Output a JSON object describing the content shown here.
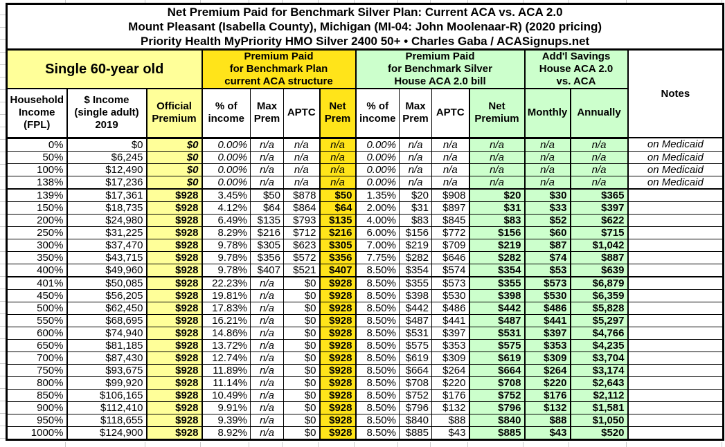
{
  "titles": {
    "line1": "Net Premium Paid for Benchmark Silver Plan: Current ACA vs. ACA 2.0",
    "line2": "Mount Pleasant (Isabella County), Michigan (MI-04: John Moolenaar-R) (2020 pricing)",
    "line3": "Priority Health MyPriority HMO Silver 2400 50+ • Charles Gaba / ACASignups.net"
  },
  "colors": {
    "pale_yellow": "#FFFF99",
    "bright_yellow": "#FFE41A",
    "pale_green": "#CCFFCC",
    "grid_grey": "#C9C9C9"
  },
  "header": {
    "single": "Single 60-year old",
    "aca_group": "Premium Paid\nfor Benchmark Plan\ncurrent ACA structure",
    "aca2_group": "Premium Paid\nfor Benchmark Silver\nHouse ACA 2.0 bill",
    "savings_group": "Add'l Savings\nHouse ACA 2.0\nvs. ACA",
    "notes": "Notes",
    "cols": {
      "fpl": "Household\nIncome\n(FPL)",
      "income": "$ Income\n(single adult)\n2019",
      "official": "Official\nPremium",
      "pct": "% of\nincome",
      "max": "Max\nPrem",
      "aptc": "APTC",
      "net1": "Net\nPrem",
      "net2": "Net\nPremium",
      "monthly": "Monthly",
      "annually": "Annually"
    }
  },
  "rows": [
    {
      "fpl": "0%",
      "income": "$0",
      "official": "$0",
      "pct1": "0.00%",
      "max1": "n/a",
      "aptc1": "n/a",
      "net1": "n/a",
      "pct2": "0.00%",
      "max2": "n/a",
      "aptc2": "n/a",
      "net2": "n/a",
      "monthly": "n/a",
      "annually": "n/a",
      "note": "on Medicaid",
      "medicaid": true
    },
    {
      "fpl": "50%",
      "income": "$6,245",
      "official": "$0",
      "pct1": "0.00%",
      "max1": "n/a",
      "aptc1": "n/a",
      "net1": "n/a",
      "pct2": "0.00%",
      "max2": "n/a",
      "aptc2": "n/a",
      "net2": "n/a",
      "monthly": "n/a",
      "annually": "n/a",
      "note": "on Medicaid",
      "medicaid": true
    },
    {
      "fpl": "100%",
      "income": "$12,490",
      "official": "$0",
      "pct1": "0.00%",
      "max1": "n/a",
      "aptc1": "n/a",
      "net1": "n/a",
      "pct2": "0.00%",
      "max2": "n/a",
      "aptc2": "n/a",
      "net2": "n/a",
      "monthly": "n/a",
      "annually": "n/a",
      "note": "on Medicaid",
      "medicaid": true
    },
    {
      "fpl": "138%",
      "income": "$17,236",
      "official": "$0",
      "pct1": "0.00%",
      "max1": "n/a",
      "aptc1": "n/a",
      "net1": "n/a",
      "pct2": "0.00%",
      "max2": "n/a",
      "aptc2": "n/a",
      "net2": "n/a",
      "monthly": "n/a",
      "annually": "n/a",
      "note": "on Medicaid",
      "medicaid": true
    },
    {
      "fpl": "139%",
      "income": "$17,361",
      "official": "$928",
      "pct1": "3.45%",
      "max1": "$50",
      "aptc1": "$878",
      "net1": "$50",
      "pct2": "1.35%",
      "max2": "$20",
      "aptc2": "$908",
      "net2": "$20",
      "monthly": "$30",
      "annually": "$365",
      "note": "",
      "thick_top": true
    },
    {
      "fpl": "150%",
      "income": "$18,735",
      "official": "$928",
      "pct1": "4.12%",
      "max1": "$64",
      "aptc1": "$864",
      "net1": "$64",
      "pct2": "2.00%",
      "max2": "$31",
      "aptc2": "$897",
      "net2": "$31",
      "monthly": "$33",
      "annually": "$397",
      "note": ""
    },
    {
      "fpl": "200%",
      "income": "$24,980",
      "official": "$928",
      "pct1": "6.49%",
      "max1": "$135",
      "aptc1": "$793",
      "net1": "$135",
      "pct2": "4.00%",
      "max2": "$83",
      "aptc2": "$845",
      "net2": "$83",
      "monthly": "$52",
      "annually": "$622",
      "note": ""
    },
    {
      "fpl": "250%",
      "income": "$31,225",
      "official": "$928",
      "pct1": "8.29%",
      "max1": "$216",
      "aptc1": "$712",
      "net1": "$216",
      "pct2": "6.00%",
      "max2": "$156",
      "aptc2": "$772",
      "net2": "$156",
      "monthly": "$60",
      "annually": "$715",
      "note": ""
    },
    {
      "fpl": "300%",
      "income": "$37,470",
      "official": "$928",
      "pct1": "9.78%",
      "max1": "$305",
      "aptc1": "$623",
      "net1": "$305",
      "pct2": "7.00%",
      "max2": "$219",
      "aptc2": "$709",
      "net2": "$219",
      "monthly": "$87",
      "annually": "$1,042",
      "note": ""
    },
    {
      "fpl": "350%",
      "income": "$43,715",
      "official": "$928",
      "pct1": "9.78%",
      "max1": "$356",
      "aptc1": "$572",
      "net1": "$356",
      "pct2": "7.75%",
      "max2": "$282",
      "aptc2": "$646",
      "net2": "$282",
      "monthly": "$74",
      "annually": "$887",
      "note": ""
    },
    {
      "fpl": "400%",
      "income": "$49,960",
      "official": "$928",
      "pct1": "9.78%",
      "max1": "$407",
      "aptc1": "$521",
      "net1": "$407",
      "pct2": "8.50%",
      "max2": "$354",
      "aptc2": "$574",
      "net2": "$354",
      "monthly": "$53",
      "annually": "$639",
      "note": ""
    },
    {
      "fpl": "401%",
      "income": "$50,085",
      "official": "$928",
      "pct1": "22.23%",
      "max1": "n/a",
      "aptc1": "$0",
      "net1": "$928",
      "pct2": "8.50%",
      "max2": "$355",
      "aptc2": "$573",
      "net2": "$355",
      "monthly": "$573",
      "annually": "$6,879",
      "note": "",
      "thick_top": true
    },
    {
      "fpl": "450%",
      "income": "$56,205",
      "official": "$928",
      "pct1": "19.81%",
      "max1": "n/a",
      "aptc1": "$0",
      "net1": "$928",
      "pct2": "8.50%",
      "max2": "$398",
      "aptc2": "$530",
      "net2": "$398",
      "monthly": "$530",
      "annually": "$6,359",
      "note": ""
    },
    {
      "fpl": "500%",
      "income": "$62,450",
      "official": "$928",
      "pct1": "17.83%",
      "max1": "n/a",
      "aptc1": "$0",
      "net1": "$928",
      "pct2": "8.50%",
      "max2": "$442",
      "aptc2": "$486",
      "net2": "$442",
      "monthly": "$486",
      "annually": "$5,828",
      "note": ""
    },
    {
      "fpl": "550%",
      "income": "$68,695",
      "official": "$928",
      "pct1": "16.21%",
      "max1": "n/a",
      "aptc1": "$0",
      "net1": "$928",
      "pct2": "8.50%",
      "max2": "$487",
      "aptc2": "$441",
      "net2": "$487",
      "monthly": "$441",
      "annually": "$5,297",
      "note": ""
    },
    {
      "fpl": "600%",
      "income": "$74,940",
      "official": "$928",
      "pct1": "14.86%",
      "max1": "n/a",
      "aptc1": "$0",
      "net1": "$928",
      "pct2": "8.50%",
      "max2": "$531",
      "aptc2": "$397",
      "net2": "$531",
      "monthly": "$397",
      "annually": "$4,766",
      "note": ""
    },
    {
      "fpl": "650%",
      "income": "$81,185",
      "official": "$928",
      "pct1": "13.72%",
      "max1": "n/a",
      "aptc1": "$0",
      "net1": "$928",
      "pct2": "8.50%",
      "max2": "$575",
      "aptc2": "$353",
      "net2": "$575",
      "monthly": "$353",
      "annually": "$4,235",
      "note": ""
    },
    {
      "fpl": "700%",
      "income": "$87,430",
      "official": "$928",
      "pct1": "12.74%",
      "max1": "n/a",
      "aptc1": "$0",
      "net1": "$928",
      "pct2": "8.50%",
      "max2": "$619",
      "aptc2": "$309",
      "net2": "$619",
      "monthly": "$309",
      "annually": "$3,704",
      "note": ""
    },
    {
      "fpl": "750%",
      "income": "$93,675",
      "official": "$928",
      "pct1": "11.89%",
      "max1": "n/a",
      "aptc1": "$0",
      "net1": "$928",
      "pct2": "8.50%",
      "max2": "$664",
      "aptc2": "$264",
      "net2": "$664",
      "monthly": "$264",
      "annually": "$3,174",
      "note": ""
    },
    {
      "fpl": "800%",
      "income": "$99,920",
      "official": "$928",
      "pct1": "11.14%",
      "max1": "n/a",
      "aptc1": "$0",
      "net1": "$928",
      "pct2": "8.50%",
      "max2": "$708",
      "aptc2": "$220",
      "net2": "$708",
      "monthly": "$220",
      "annually": "$2,643",
      "note": ""
    },
    {
      "fpl": "850%",
      "income": "$106,165",
      "official": "$928",
      "pct1": "10.49%",
      "max1": "n/a",
      "aptc1": "$0",
      "net1": "$928",
      "pct2": "8.50%",
      "max2": "$752",
      "aptc2": "$176",
      "net2": "$752",
      "monthly": "$176",
      "annually": "$2,112",
      "note": ""
    },
    {
      "fpl": "900%",
      "income": "$112,410",
      "official": "$928",
      "pct1": "9.91%",
      "max1": "n/a",
      "aptc1": "$0",
      "net1": "$928",
      "pct2": "8.50%",
      "max2": "$796",
      "aptc2": "$132",
      "net2": "$796",
      "monthly": "$132",
      "annually": "$1,581",
      "note": ""
    },
    {
      "fpl": "950%",
      "income": "$118,655",
      "official": "$928",
      "pct1": "9.39%",
      "max1": "n/a",
      "aptc1": "$0",
      "net1": "$928",
      "pct2": "8.50%",
      "max2": "$840",
      "aptc2": "$88",
      "net2": "$840",
      "monthly": "$88",
      "annually": "$1,050",
      "note": ""
    },
    {
      "fpl": "1000%",
      "income": "$124,900",
      "official": "$928",
      "pct1": "8.92%",
      "max1": "n/a",
      "aptc1": "$0",
      "net1": "$928",
      "pct2": "8.50%",
      "max2": "$885",
      "aptc2": "$43",
      "net2": "$885",
      "monthly": "$43",
      "annually": "$520",
      "note": ""
    }
  ]
}
